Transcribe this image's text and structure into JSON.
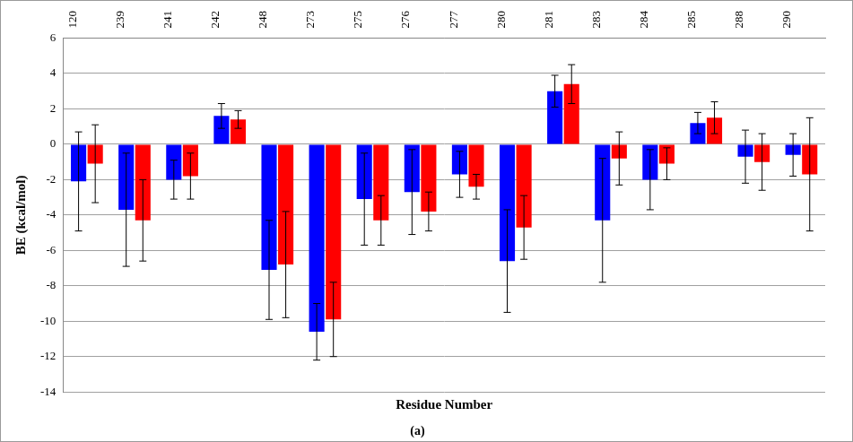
{
  "chart_data": {
    "type": "bar",
    "categories": [
      "120",
      "239",
      "241",
      "242",
      "248",
      "273",
      "275",
      "276",
      "277",
      "280",
      "281",
      "283",
      "284",
      "285",
      "288",
      "290"
    ],
    "series": [
      {
        "color": "#0000ff",
        "values": [
          -2.1,
          -3.7,
          -2.0,
          1.6,
          -7.1,
          -10.6,
          -3.1,
          -2.7,
          -1.7,
          -6.6,
          3.0,
          -4.3,
          -2.0,
          1.2,
          -0.7,
          -0.6
        ],
        "errors": [
          2.8,
          3.2,
          1.1,
          0.7,
          2.8,
          1.6,
          2.6,
          2.4,
          1.3,
          2.9,
          0.9,
          3.5,
          1.7,
          0.6,
          1.5,
          1.2
        ]
      },
      {
        "color": "#ff0000",
        "values": [
          -1.1,
          -4.3,
          -1.8,
          1.4,
          -6.8,
          -9.9,
          -4.3,
          -3.8,
          -2.4,
          -4.7,
          3.4,
          -0.8,
          -1.1,
          1.5,
          -1.0,
          -1.7
        ],
        "errors": [
          2.2,
          2.3,
          1.3,
          0.5,
          3.0,
          2.1,
          1.4,
          1.1,
          0.7,
          1.8,
          1.1,
          1.5,
          0.9,
          0.9,
          1.6,
          3.2
        ]
      }
    ],
    "xlabel": "Residue Number",
    "ylabel": "BE (kcal/mol)",
    "caption": "(a)",
    "ylim": [
      -14,
      6
    ],
    "yticks": [
      -14,
      -12,
      -10,
      -8,
      -6,
      -4,
      -2,
      0,
      2,
      4,
      6
    ],
    "grid": true
  }
}
